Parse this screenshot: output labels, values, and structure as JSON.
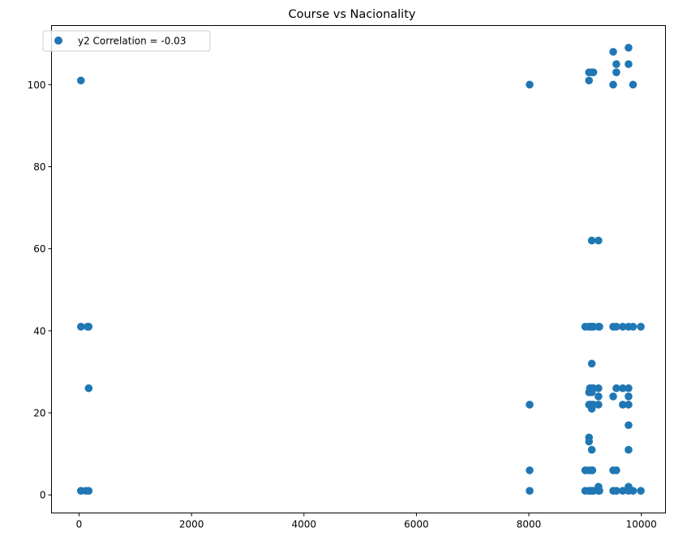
{
  "chart_data": {
    "type": "scatter",
    "title": "Course vs Nacionality",
    "xlabel": "",
    "ylabel": "",
    "xlim": [
      -490,
      10430
    ],
    "ylim": [
      -4.4,
      114.4
    ],
    "xticks": [
      0,
      2000,
      4000,
      6000,
      8000,
      10000
    ],
    "yticks": [
      0,
      20,
      40,
      60,
      80,
      100
    ],
    "grid": false,
    "legend_position": "top-left",
    "series": [
      {
        "name": "y2 Correlation = -0.03",
        "color": "#1f77b4",
        "points": [
          [
            33,
            1
          ],
          [
            171,
            1
          ],
          [
            33,
            41
          ],
          [
            171,
            41
          ],
          [
            33,
            101
          ],
          [
            171,
            26
          ],
          [
            120,
            1
          ],
          [
            150,
            41
          ],
          [
            8014,
            1
          ],
          [
            8014,
            100
          ],
          [
            8014,
            22
          ],
          [
            8014,
            6
          ],
          [
            9003,
            1
          ],
          [
            9003,
            41
          ],
          [
            9003,
            6
          ],
          [
            9070,
            1
          ],
          [
            9070,
            101
          ],
          [
            9070,
            103
          ],
          [
            9070,
            41
          ],
          [
            9070,
            22
          ],
          [
            9070,
            25
          ],
          [
            9070,
            14
          ],
          [
            9070,
            13
          ],
          [
            9070,
            6
          ],
          [
            9085,
            1
          ],
          [
            9085,
            41
          ],
          [
            9085,
            22
          ],
          [
            9085,
            26
          ],
          [
            9119,
            1
          ],
          [
            9119,
            62
          ],
          [
            9119,
            41
          ],
          [
            9119,
            32
          ],
          [
            9119,
            25
          ],
          [
            9119,
            22
          ],
          [
            9119,
            11
          ],
          [
            9119,
            6
          ],
          [
            9119,
            103
          ],
          [
            9119,
            21
          ],
          [
            9130,
            1
          ],
          [
            9130,
            41
          ],
          [
            9130,
            26
          ],
          [
            9130,
            6
          ],
          [
            9147,
            1
          ],
          [
            9147,
            41
          ],
          [
            9147,
            103
          ],
          [
            9147,
            22
          ],
          [
            9147,
            26
          ],
          [
            9238,
            1
          ],
          [
            9238,
            62
          ],
          [
            9238,
            41
          ],
          [
            9238,
            22
          ],
          [
            9238,
            24
          ],
          [
            9238,
            26
          ],
          [
            9238,
            2
          ],
          [
            9254,
            1
          ],
          [
            9254,
            41
          ],
          [
            9500,
            1
          ],
          [
            9500,
            41
          ],
          [
            9500,
            100
          ],
          [
            9500,
            108
          ],
          [
            9500,
            24
          ],
          [
            9500,
            6
          ],
          [
            9556,
            1
          ],
          [
            9556,
            41
          ],
          [
            9556,
            103
          ],
          [
            9556,
            105
          ],
          [
            9556,
            26
          ],
          [
            9556,
            6
          ],
          [
            9670,
            1
          ],
          [
            9670,
            41
          ],
          [
            9670,
            26
          ],
          [
            9670,
            22
          ],
          [
            9773,
            1
          ],
          [
            9773,
            41
          ],
          [
            9773,
            109
          ],
          [
            9773,
            105
          ],
          [
            9773,
            26
          ],
          [
            9773,
            24
          ],
          [
            9773,
            22
          ],
          [
            9773,
            17
          ],
          [
            9773,
            11
          ],
          [
            9773,
            2
          ],
          [
            9853,
            1
          ],
          [
            9853,
            41
          ],
          [
            9853,
            100
          ],
          [
            9991,
            1
          ],
          [
            9991,
            41
          ]
        ]
      }
    ]
  }
}
